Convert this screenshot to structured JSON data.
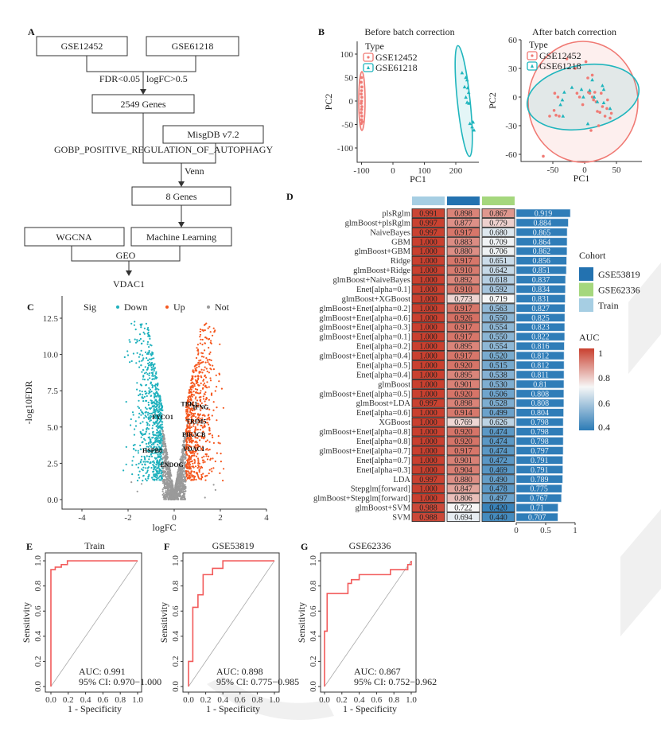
{
  "panels": {
    "A": "A",
    "B": "B",
    "C": "C",
    "D": "D",
    "E": "E",
    "F": "F",
    "G": "G"
  },
  "flowchart": {
    "box1": "GSE12452",
    "box2": "GSE61218",
    "filter_left": "FDR<0.05",
    "filter_right": "logFC>0.5",
    "genes_2549": "2549 Genes",
    "msigdb": "MisgDB v7.2",
    "geneset": "GOBP_POSITIVE_REGULATION_OF_AUTOPHAGY",
    "venn": "Venn",
    "genes_8": "8 Genes",
    "wgcna": "WGCNA",
    "ml": "Machine Learning",
    "geo": "GEO",
    "result": "VDAC1"
  },
  "colors": {
    "GSE12452": "#f07a74",
    "GSE61218": "#1fb5bd",
    "down": "#1fb1bd",
    "up": "#f5561d",
    "not": "#9a9a9a",
    "roc": "#f25a5a",
    "cohort_GSE53819": "#2372b0",
    "cohort_GSE62336": "#a5d77d",
    "cohort_Train": "#a6cee3",
    "auc_low": "#2c7bb6",
    "auc_mid": "#f7f7f7",
    "auc_high": "#c9402f"
  },
  "chart_data": [
    {
      "id": "pca_before",
      "type": "scatter",
      "title": "Before batch correction",
      "xlabel": "PC1",
      "ylabel": "PC2",
      "xticks": [
        "-100",
        "0",
        "100",
        "200"
      ],
      "yticks": [
        "100",
        "50",
        "0",
        "-50",
        "-100"
      ],
      "xlim": [
        -115,
        275
      ],
      "ylim": [
        -130,
        125
      ],
      "legend_title": "Type",
      "series": [
        {
          "name": "GSE12452",
          "marker": "circle",
          "points": [
            [
              -100,
              50
            ],
            [
              -101,
              40
            ],
            [
              -99,
              30
            ],
            [
              -100,
              22
            ],
            [
              -101,
              15
            ],
            [
              -99,
              8
            ],
            [
              -100,
              0
            ],
            [
              -101,
              -5
            ],
            [
              -99,
              -12
            ],
            [
              -100,
              -18
            ],
            [
              -101,
              -25
            ],
            [
              -99,
              -32
            ],
            [
              -100,
              -40
            ],
            [
              -98,
              -44
            ],
            [
              -101,
              -48
            ]
          ]
        },
        {
          "name": "GSE61218",
          "marker": "triangle",
          "points": [
            [
              220,
              60
            ],
            [
              232,
              50
            ],
            [
              236,
              45
            ],
            [
              228,
              30
            ],
            [
              238,
              28
            ],
            [
              241,
              18
            ],
            [
              232,
              8
            ],
            [
              236,
              -3
            ],
            [
              242,
              -5
            ],
            [
              245,
              -48
            ],
            [
              255,
              -45
            ],
            [
              252,
              -55
            ],
            [
              258,
              -62
            ]
          ]
        }
      ]
    },
    {
      "id": "pca_after",
      "type": "scatter",
      "title": "After batch correction",
      "xlabel": "PC1",
      "ylabel": "PC2",
      "xticks": [
        "-50",
        "0",
        "50"
      ],
      "yticks": [
        "60",
        "30",
        "0",
        "-30",
        "-60"
      ],
      "xlim": [
        -100,
        90
      ],
      "ylim": [
        -68,
        62
      ],
      "legend_title": "Type",
      "series": [
        {
          "name": "GSE12452",
          "marker": "circle",
          "points": [
            [
              -65,
              -62
            ],
            [
              -55,
              -20
            ],
            [
              -48,
              -14
            ],
            [
              -47,
              4
            ],
            [
              -45,
              -19
            ],
            [
              -42,
              0
            ],
            [
              -40,
              -20
            ],
            [
              -28,
              40
            ],
            [
              -15,
              30
            ],
            [
              -12,
              4
            ],
            [
              -8,
              0
            ],
            [
              -3,
              -8
            ],
            [
              5,
              20
            ],
            [
              6,
              5
            ],
            [
              8,
              4
            ],
            [
              10,
              -35
            ],
            [
              12,
              23
            ],
            [
              12,
              0
            ],
            [
              14,
              -3
            ],
            [
              16,
              5
            ],
            [
              18,
              -5
            ],
            [
              20,
              -15
            ],
            [
              22,
              -30
            ],
            [
              24,
              -16
            ],
            [
              26,
              4
            ],
            [
              28,
              -10
            ],
            [
              32,
              -20
            ],
            [
              35,
              -12
            ],
            [
              36,
              -3
            ],
            [
              40,
              -22
            ],
            [
              42,
              -17
            ],
            [
              2,
              37
            ]
          ]
        },
        {
          "name": "GSE61218",
          "marker": "triangle",
          "points": [
            [
              -38,
              -8
            ],
            [
              -35,
              -3
            ],
            [
              -34,
              -20
            ],
            [
              -32,
              5
            ],
            [
              -20,
              10
            ],
            [
              -5,
              8
            ],
            [
              -2,
              0
            ],
            [
              5,
              -28
            ],
            [
              8,
              7
            ],
            [
              12,
              18
            ],
            [
              15,
              0
            ],
            [
              20,
              -5
            ],
            [
              28,
              12
            ],
            [
              30,
              8
            ],
            [
              30,
              -6
            ],
            [
              40,
              -12
            ]
          ]
        }
      ]
    },
    {
      "id": "volcano",
      "type": "scatter",
      "xlabel": "logFC",
      "ylabel": "-log10FDR",
      "xticks": [
        "-4",
        "-2",
        "0",
        "2",
        "4"
      ],
      "yticks": [
        "0.0",
        "2.5",
        "5.0",
        "7.5",
        "10.0",
        "12.5"
      ],
      "xlim": [
        -4.8,
        4.1
      ],
      "ylim": [
        -0.3,
        12.8
      ],
      "legend_title": "Sig",
      "legend": [
        "Down",
        "Up",
        "Not"
      ],
      "labeled_genes": [
        {
          "gene": "TBK1",
          "logFC": 0.65,
          "y": 6.6
        },
        {
          "gene": "IFNG",
          "logFC": 1.15,
          "y": 6.4
        },
        {
          "gene": "FYCO1",
          "logFC": -0.5,
          "y": 5.7
        },
        {
          "gene": "TRIM5",
          "logFC": 0.95,
          "y": 5.4
        },
        {
          "gene": "PIK3CB",
          "logFC": 0.85,
          "y": 4.5
        },
        {
          "gene": "VDAC1",
          "logFC": 0.85,
          "y": 3.5
        },
        {
          "gene": "HSPB8",
          "logFC": -0.95,
          "y": 3.4
        },
        {
          "gene": "ENDOG",
          "logFC": -0.1,
          "y": 2.4
        }
      ]
    },
    {
      "id": "model_auc_heatmap",
      "type": "heatmap",
      "columns": [
        "Train",
        "GSE53819",
        "GSE62336"
      ],
      "legend_cohort_title": "Cohort",
      "legend_cohort": [
        "GSE53819",
        "GSE62336",
        "Train"
      ],
      "legend_auc_title": "AUC",
      "legend_auc_ticks": [
        "1",
        "0.8",
        "0.6",
        "0.4"
      ],
      "bar_axis_ticks": [
        "0",
        "0.5",
        "1"
      ],
      "rows": [
        {
          "model": "plsRglm",
          "values": [
            "0.991",
            "0.898",
            "0.867"
          ],
          "mean": "0.919"
        },
        {
          "model": "glmBoost+plsRglm",
          "values": [
            "0.997",
            "0.877",
            "0.779"
          ],
          "mean": "0.884"
        },
        {
          "model": "NaiveBayes",
          "values": [
            "0.997",
            "0.917",
            "0.680"
          ],
          "mean": "0.865"
        },
        {
          "model": "GBM",
          "values": [
            "1.000",
            "0.883",
            "0.709"
          ],
          "mean": "0.864"
        },
        {
          "model": "glmBoost+GBM",
          "values": [
            "1.000",
            "0.880",
            "0.706"
          ],
          "mean": "0.862"
        },
        {
          "model": "Ridge",
          "values": [
            "1.000",
            "0.917",
            "0.651"
          ],
          "mean": "0.856"
        },
        {
          "model": "glmBoost+Ridge",
          "values": [
            "1.000",
            "0.910",
            "0.642"
          ],
          "mean": "0.851"
        },
        {
          "model": "glmBoost+NaiveBayes",
          "values": [
            "1.000",
            "0.892",
            "0.618"
          ],
          "mean": "0.837"
        },
        {
          "model": "Enet[alpha=0.1]",
          "values": [
            "1.000",
            "0.910",
            "0.592"
          ],
          "mean": "0.834"
        },
        {
          "model": "glmBoost+XGBoost",
          "values": [
            "1.000",
            "0.773",
            "0.719"
          ],
          "mean": "0.831"
        },
        {
          "model": "glmBoost+Enet[alpha=0.2]",
          "values": [
            "1.000",
            "0.917",
            "0.563"
          ],
          "mean": "0.827"
        },
        {
          "model": "glmBoost+Enet[alpha=0.6]",
          "values": [
            "1.000",
            "0.926",
            "0.550"
          ],
          "mean": "0.825"
        },
        {
          "model": "glmBoost+Enet[alpha=0.3]",
          "values": [
            "1.000",
            "0.917",
            "0.554"
          ],
          "mean": "0.823"
        },
        {
          "model": "glmBoost+Enet[alpha=0.1]",
          "values": [
            "1.000",
            "0.917",
            "0.550"
          ],
          "mean": "0.822"
        },
        {
          "model": "Enet[alpha=0.2]",
          "values": [
            "1.000",
            "0.895",
            "0.554"
          ],
          "mean": "0.816"
        },
        {
          "model": "glmBoost+Enet[alpha=0.4]",
          "values": [
            "1.000",
            "0.917",
            "0.520"
          ],
          "mean": "0.812"
        },
        {
          "model": "Enet[alpha=0.5]",
          "values": [
            "1.000",
            "0.920",
            "0.515"
          ],
          "mean": "0.812"
        },
        {
          "model": "Enet[alpha=0.4]",
          "values": [
            "1.000",
            "0.895",
            "0.538"
          ],
          "mean": "0.811"
        },
        {
          "model": "glmBoost",
          "values": [
            "1.000",
            "0.901",
            "0.530"
          ],
          "mean": "0.81"
        },
        {
          "model": "glmBoost+Enet[alpha=0.5]",
          "values": [
            "1.000",
            "0.920",
            "0.506"
          ],
          "mean": "0.808"
        },
        {
          "model": "glmBoost+LDA",
          "values": [
            "0.997",
            "0.898",
            "0.528"
          ],
          "mean": "0.808"
        },
        {
          "model": "Enet[alpha=0.6]",
          "values": [
            "1.000",
            "0.914",
            "0.499"
          ],
          "mean": "0.804"
        },
        {
          "model": "XGBoost",
          "values": [
            "1.000",
            "0.769",
            "0.626"
          ],
          "mean": "0.798"
        },
        {
          "model": "glmBoost+Enet[alpha=0.8]",
          "values": [
            "1.000",
            "0.920",
            "0.474"
          ],
          "mean": "0.798"
        },
        {
          "model": "Enet[alpha=0.8]",
          "values": [
            "1.000",
            "0.920",
            "0.474"
          ],
          "mean": "0.798"
        },
        {
          "model": "glmBoost+Enet[alpha=0.7]",
          "values": [
            "1.000",
            "0.917",
            "0.474"
          ],
          "mean": "0.797"
        },
        {
          "model": "Enet[alpha=0.7]",
          "values": [
            "1.000",
            "0.901",
            "0.472"
          ],
          "mean": "0.791"
        },
        {
          "model": "Enet[alpha=0.3]",
          "values": [
            "1.000",
            "0.904",
            "0.469"
          ],
          "mean": "0.791"
        },
        {
          "model": "LDA",
          "values": [
            "0.997",
            "0.880",
            "0.490"
          ],
          "mean": "0.789"
        },
        {
          "model": "Stepglm[forward]",
          "values": [
            "1.000",
            "0.847",
            "0.478"
          ],
          "mean": "0.775"
        },
        {
          "model": "glmBoost+Stepglm[forward]",
          "values": [
            "1.000",
            "0.806",
            "0.497"
          ],
          "mean": "0.767"
        },
        {
          "model": "glmBoost+SVM",
          "values": [
            "0.988",
            "0.722",
            "0.420"
          ],
          "mean": "0.71"
        },
        {
          "model": "SVM",
          "values": [
            "0.988",
            "0.694",
            "0.440"
          ],
          "mean": "0.707"
        }
      ]
    },
    {
      "id": "roc_train",
      "type": "line",
      "title": "Train",
      "xlabel": "1 - Specificity",
      "ylabel": "Sensitivity",
      "ticks": [
        "0.0",
        "0.2",
        "0.4",
        "0.6",
        "0.8",
        "1.0"
      ],
      "xlim": [
        0,
        1
      ],
      "ylim": [
        0,
        1
      ],
      "auc": "AUC: 0.991",
      "ci": "95% CI: 0.970−1.000",
      "points": [
        [
          0,
          0
        ],
        [
          0,
          0.93
        ],
        [
          0.05,
          0.93
        ],
        [
          0.05,
          0.95
        ],
        [
          0.12,
          0.95
        ],
        [
          0.12,
          0.97
        ],
        [
          0.19,
          0.97
        ],
        [
          0.19,
          1
        ],
        [
          1,
          1
        ]
      ]
    },
    {
      "id": "roc_gse53819",
      "type": "line",
      "title": "GSE53819",
      "xlabel": "1 - Specificity",
      "ylabel": "Sensitivity",
      "ticks": [
        "0.0",
        "0.2",
        "0.4",
        "0.6",
        "0.8",
        "1.0"
      ],
      "xlim": [
        0,
        1
      ],
      "ylim": [
        0,
        1
      ],
      "auc": "AUC: 0.898",
      "ci": "95% CI: 0.775−0.985",
      "points": [
        [
          0,
          0
        ],
        [
          0,
          0.2
        ],
        [
          0.05,
          0.2
        ],
        [
          0.05,
          0.63
        ],
        [
          0.11,
          0.63
        ],
        [
          0.11,
          0.73
        ],
        [
          0.17,
          0.73
        ],
        [
          0.17,
          0.89
        ],
        [
          0.28,
          0.89
        ],
        [
          0.28,
          0.94
        ],
        [
          0.4,
          0.94
        ],
        [
          0.4,
          1
        ],
        [
          1,
          1
        ]
      ]
    },
    {
      "id": "roc_gse62336",
      "type": "line",
      "title": "GSE62336",
      "xlabel": "1 - Specificity",
      "ylabel": "Sensitivity",
      "ticks": [
        "0.0",
        "0.2",
        "0.4",
        "0.6",
        "0.8",
        "1.0"
      ],
      "xlim": [
        0,
        1
      ],
      "ylim": [
        0,
        1
      ],
      "auc": "AUC: 0.867",
      "ci": "95% CI: 0.752−0.962",
      "points": [
        [
          0,
          0
        ],
        [
          0,
          0.44
        ],
        [
          0.03,
          0.44
        ],
        [
          0.03,
          0.74
        ],
        [
          0.27,
          0.74
        ],
        [
          0.27,
          0.82
        ],
        [
          0.31,
          0.82
        ],
        [
          0.31,
          0.85
        ],
        [
          0.4,
          0.85
        ],
        [
          0.4,
          0.89
        ],
        [
          0.76,
          0.89
        ],
        [
          0.76,
          0.93
        ],
        [
          0.96,
          0.93
        ],
        [
          0.96,
          0.97
        ],
        [
          1,
          0.97
        ],
        [
          1,
          1
        ]
      ]
    }
  ]
}
